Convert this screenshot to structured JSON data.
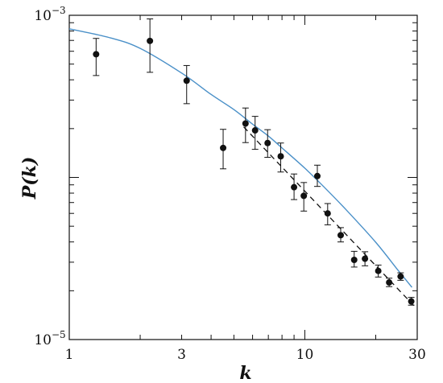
{
  "chart_data": {
    "type": "scatter",
    "xlabel": "k",
    "ylabel": "P(k)",
    "xscale": "log",
    "yscale": "log",
    "xlim": [
      1,
      30
    ],
    "ylim": [
      1e-05,
      0.001
    ],
    "x_tick_labels": [
      {
        "value": 1,
        "label": "1"
      },
      {
        "value": 3,
        "label": "3"
      },
      {
        "value": 10,
        "label": "10"
      },
      {
        "value": 30,
        "label": "30"
      }
    ],
    "y_tick_labels": [
      {
        "value": 1e-05,
        "base": "10",
        "exp": "−5"
      },
      {
        "value": 0.001,
        "base": "10",
        "exp": "−3"
      }
    ],
    "grid": false,
    "legend": "none",
    "colors": {
      "points": "#111111",
      "solid_curve": "#4a90c8",
      "dashed_line": "#111111"
    },
    "series": [
      {
        "kind": "points-with-errorbars",
        "points": [
          {
            "x": 1.3,
            "y": 0.000575,
            "lo": 0.000425,
            "hi": 0.00072
          },
          {
            "x": 2.2,
            "y": 0.000695,
            "lo": 0.000445,
            "hi": 0.00095
          },
          {
            "x": 3.15,
            "y": 0.000395,
            "lo": 0.000285,
            "hi": 0.00049
          },
          {
            "x": 4.5,
            "y": 0.000152,
            "lo": 0.000113,
            "hi": 0.000198
          },
          {
            "x": 5.6,
            "y": 0.000215,
            "lo": 0.000164,
            "hi": 0.000268
          },
          {
            "x": 6.15,
            "y": 0.000195,
            "lo": 0.000149,
            "hi": 0.000238
          },
          {
            "x": 6.95,
            "y": 0.000163,
            "lo": 0.000133,
            "hi": 0.000197
          },
          {
            "x": 7.9,
            "y": 0.000135,
            "lo": 0.000108,
            "hi": 0.000163
          },
          {
            "x": 9.0,
            "y": 8.7e-05,
            "lo": 7.3e-05,
            "hi": 0.000105
          },
          {
            "x": 9.9,
            "y": 7.7e-05,
            "lo": 6.2e-05,
            "hi": 9.3e-05
          },
          {
            "x": 11.3,
            "y": 0.000102,
            "lo": 8.8e-05,
            "hi": 0.000119
          },
          {
            "x": 12.5,
            "y": 6e-05,
            "lo": 5.1e-05,
            "hi": 6.9e-05
          },
          {
            "x": 14.2,
            "y": 4.4e-05,
            "lo": 4e-05,
            "hi": 4.9e-05
          },
          {
            "x": 16.2,
            "y": 3.1e-05,
            "lo": 2.8e-05,
            "hi": 3.5e-05
          },
          {
            "x": 18.0,
            "y": 3.15e-05,
            "lo": 2.85e-05,
            "hi": 3.48e-05
          },
          {
            "x": 20.5,
            "y": 2.65e-05,
            "lo": 2.43e-05,
            "hi": 2.88e-05
          },
          {
            "x": 22.8,
            "y": 2.25e-05,
            "lo": 2.12e-05,
            "hi": 2.39e-05
          },
          {
            "x": 25.5,
            "y": 2.45e-05,
            "lo": 2.32e-05,
            "hi": 2.58e-05
          },
          {
            "x": 28.3,
            "y": 1.72e-05,
            "lo": 1.63e-05,
            "hi": 1.82e-05
          }
        ]
      },
      {
        "kind": "solid-curve",
        "x": [
          1,
          1.5,
          2,
          3,
          4,
          5,
          6,
          7,
          8,
          10,
          12,
          15,
          20,
          25,
          28.5
        ],
        "y": [
          0.000825,
          0.000725,
          0.000625,
          0.00044,
          0.000325,
          0.000262,
          0.000213,
          0.00018,
          0.000152,
          0.000114,
          8.8e-05,
          6.3e-05,
          3.98e-05,
          2.65e-05,
          2.1e-05
        ]
      },
      {
        "kind": "dashed-line",
        "x": [
          5.5,
          29
        ],
        "y": [
          0.000205,
          1.62e-05
        ]
      }
    ]
  }
}
